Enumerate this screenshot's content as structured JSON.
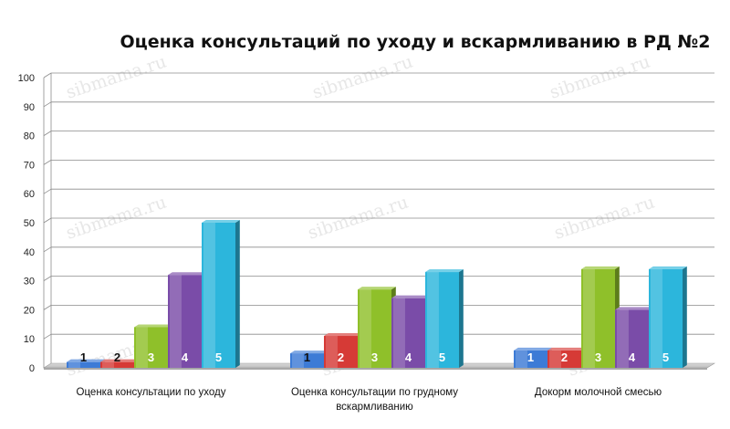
{
  "chart_data": {
    "type": "bar",
    "title": "Оценка консультаций по уходу и вскармливанию в РД №2",
    "categories": [
      [
        "Оценка консультации по уходу"
      ],
      [
        "Оценка консультации по грудному",
        "вскармливанию"
      ],
      [
        "Докорм молочной смесью"
      ]
    ],
    "series": [
      {
        "label": "1",
        "color": "#3d7bd6",
        "values": [
          2,
          5,
          6
        ]
      },
      {
        "label": "2",
        "color": "#d63a36",
        "values": [
          2,
          11,
          6
        ]
      },
      {
        "label": "3",
        "color": "#8fc02a",
        "values": [
          14,
          27,
          34
        ]
      },
      {
        "label": "4",
        "color": "#7a4ca8",
        "values": [
          32,
          24,
          20
        ]
      },
      {
        "label": "5",
        "color": "#2cb6dc",
        "values": [
          50,
          33,
          34
        ]
      }
    ],
    "ylim": [
      0,
      100
    ],
    "yticks": [
      0,
      10,
      20,
      30,
      40,
      50,
      60,
      70,
      80,
      90,
      100
    ],
    "grid": true,
    "legend": "none",
    "watermark": "sibmama.ru"
  }
}
